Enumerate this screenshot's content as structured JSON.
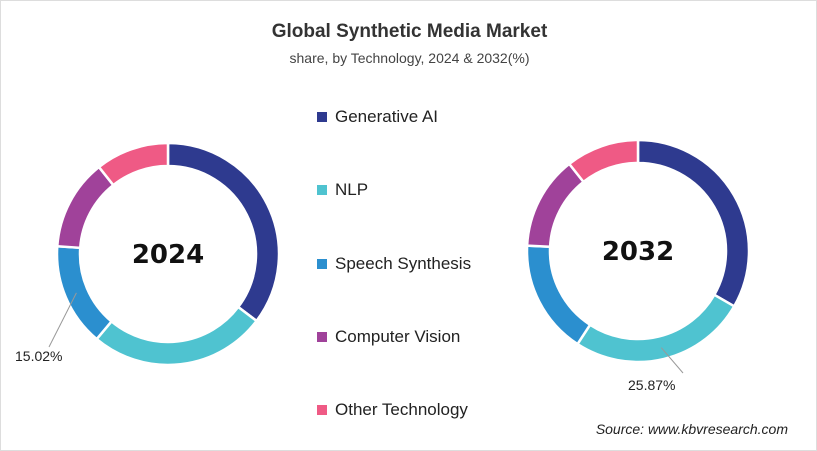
{
  "chart_data": [
    {
      "type": "pie",
      "variant": "donut",
      "center_label": "2024",
      "categories": [
        "Generative AI",
        "NLP",
        "Speech Synthesis",
        "Computer Vision",
        "Other Technology"
      ],
      "values": [
        35.3,
        25.8,
        15.02,
        13.2,
        10.68
      ],
      "data_labels": [
        {
          "category": "Speech Synthesis",
          "text": "15.02%"
        }
      ]
    },
    {
      "type": "pie",
      "variant": "donut",
      "center_label": "2032",
      "categories": [
        "Generative AI",
        "NLP",
        "Speech Synthesis",
        "Computer Vision",
        "Other Technology"
      ],
      "values": [
        33.3,
        25.87,
        16.6,
        13.6,
        10.63
      ],
      "data_labels": [
        {
          "category": "NLP",
          "text": "25.87%"
        }
      ]
    }
  ],
  "title": "Global Synthetic Media Market",
  "subtitle": "share, by Technology, 2024 & 2032(%)",
  "legend": {
    "placement": "center",
    "items": [
      "Generative AI",
      "NLP",
      "Speech Synthesis",
      "Computer Vision",
      "Other Technology"
    ]
  },
  "colors": [
    "#2e3a8f",
    "#4fc3d0",
    "#2b8fcf",
    "#a0429a",
    "#ef5a85"
  ],
  "source": "Source: www.kbvresearch.com"
}
